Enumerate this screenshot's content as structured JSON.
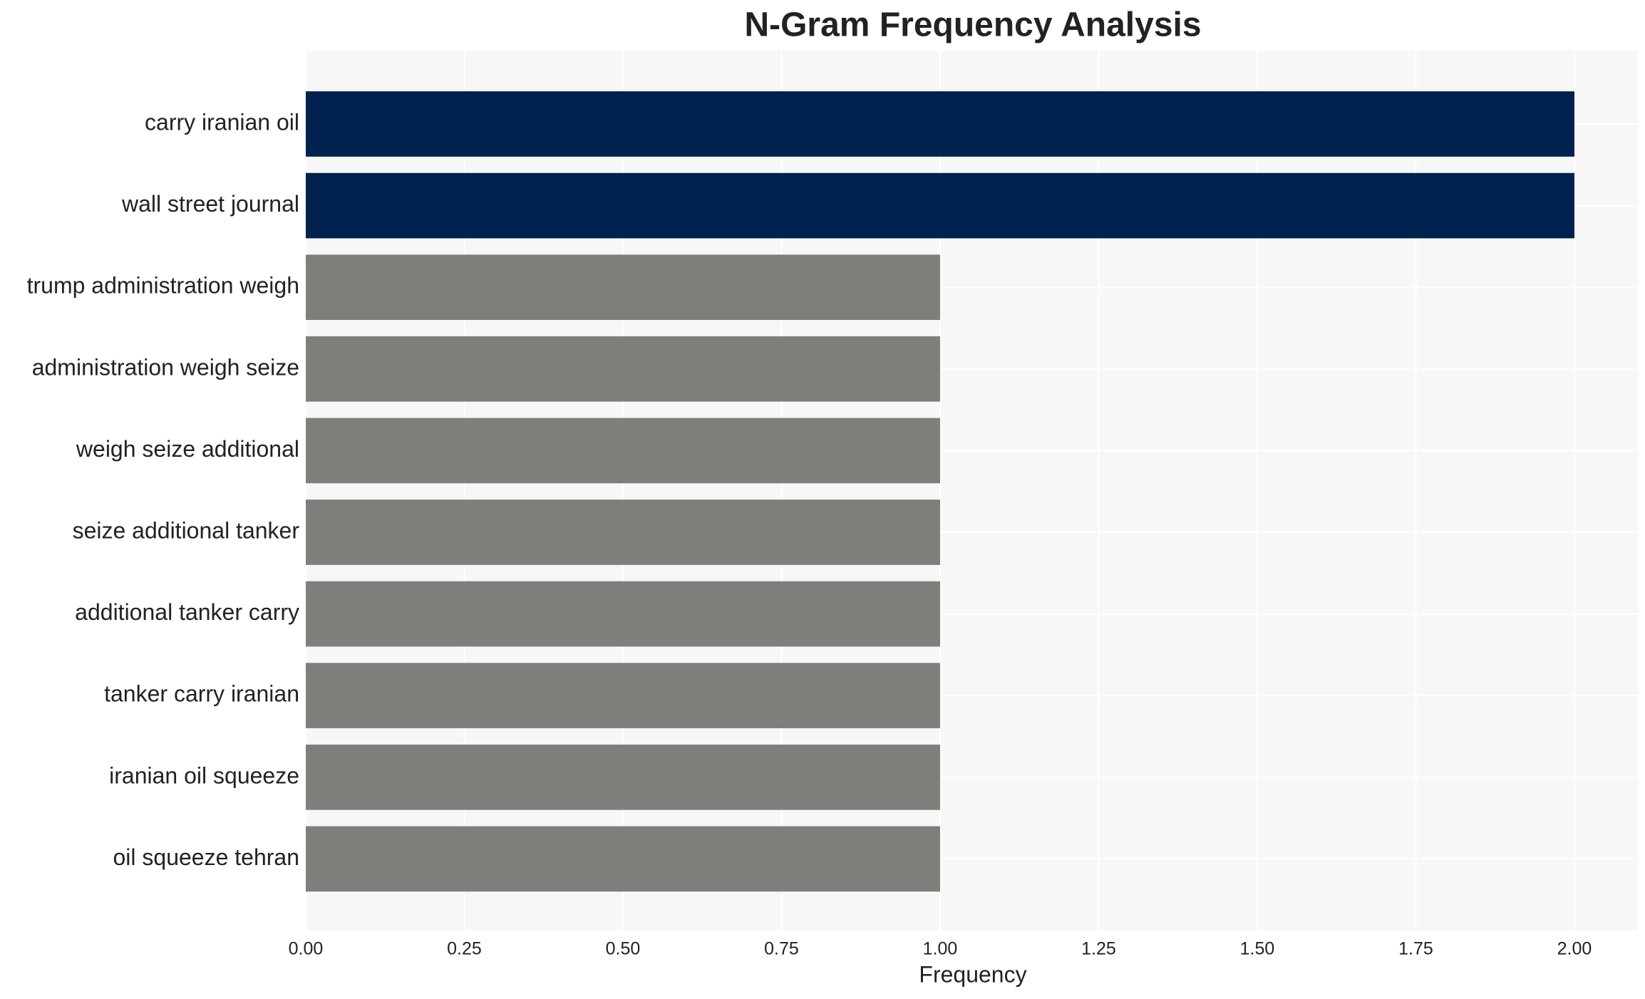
{
  "chart_data": {
    "type": "barh",
    "title": "N-Gram Frequency Analysis",
    "x_label": "Frequency",
    "categories": [
      "carry iranian oil",
      "wall street journal",
      "trump administration weigh",
      "administration weigh seize",
      "weigh seize additional",
      "seize additional tanker",
      "additional tanker carry",
      "tanker carry iranian",
      "iranian oil squeeze",
      "oil squeeze tehran"
    ],
    "values": [
      2,
      2,
      1,
      1,
      1,
      1,
      1,
      1,
      1,
      1
    ],
    "colors": [
      "#00224e",
      "#00224e",
      "#7f7e7a",
      "#7f7e7a",
      "#7f7e7a",
      "#7f7e7a",
      "#7f7e7a",
      "#7f7e7a",
      "#7f7e7a",
      "#7f7e7a"
    ],
    "xlim": [
      0,
      2.1
    ],
    "xticks": [
      {
        "value": 0,
        "label": "0.00"
      },
      {
        "value": 0.25,
        "label": "0.25"
      },
      {
        "value": 0.5,
        "label": "0.50"
      },
      {
        "value": 0.75,
        "label": "0.75"
      },
      {
        "value": 1,
        "label": "1.00"
      },
      {
        "value": 1.25,
        "label": "1.25"
      },
      {
        "value": 1.5,
        "label": "1.50"
      },
      {
        "value": 1.75,
        "label": "1.75"
      },
      {
        "value": 2,
        "label": "2.00"
      }
    ],
    "grid": true
  }
}
